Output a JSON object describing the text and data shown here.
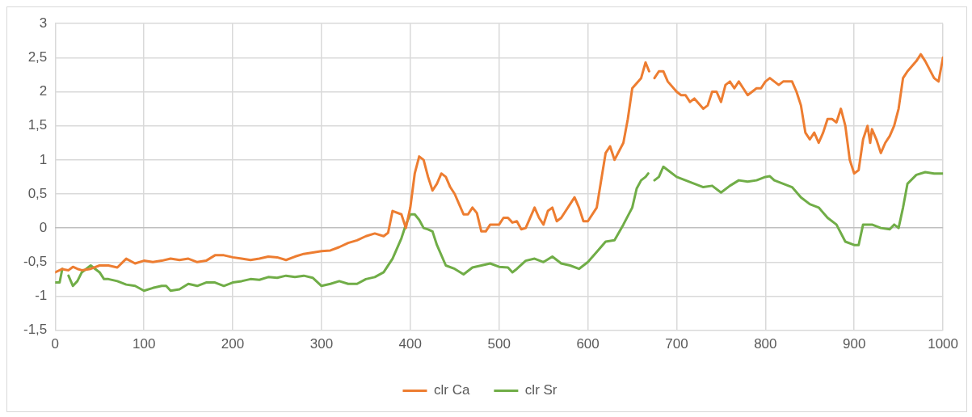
{
  "chart_data": {
    "type": "line",
    "xlim": [
      0,
      1000
    ],
    "xticks": [
      0,
      100,
      200,
      300,
      400,
      500,
      600,
      700,
      800,
      900,
      1000
    ],
    "ylim": [
      -1.5,
      3
    ],
    "yticks": [
      {
        "value": -1.5,
        "label": "-1,5"
      },
      {
        "value": -1,
        "label": "-1"
      },
      {
        "value": -0.5,
        "label": "-0,5"
      },
      {
        "value": 0,
        "label": "0"
      },
      {
        "value": 0.5,
        "label": "0,5"
      },
      {
        "value": 1,
        "label": "1"
      },
      {
        "value": 1.5,
        "label": "1,5"
      },
      {
        "value": 2,
        "label": "2"
      },
      {
        "value": 2.5,
        "label": "2,5"
      },
      {
        "value": 3,
        "label": "3"
      }
    ],
    "grid": true,
    "legend": "bottom",
    "marker": "none",
    "line_style": "solid",
    "series": [
      {
        "name": "clr Ca",
        "color": "#ed7d31",
        "x": [
          0,
          5,
          8,
          10,
          15,
          20,
          25,
          30,
          40,
          50,
          60,
          70,
          80,
          90,
          100,
          110,
          120,
          130,
          140,
          150,
          160,
          170,
          180,
          190,
          200,
          210,
          220,
          230,
          240,
          250,
          260,
          270,
          280,
          290,
          300,
          310,
          320,
          330,
          340,
          350,
          360,
          370,
          375,
          380,
          390,
          395,
          400,
          405,
          410,
          415,
          420,
          425,
          430,
          435,
          440,
          445,
          450,
          460,
          465,
          470,
          475,
          480,
          485,
          490,
          500,
          505,
          510,
          515,
          520,
          525,
          530,
          540,
          545,
          550,
          555,
          560,
          565,
          570,
          580,
          585,
          590,
          595,
          600,
          610,
          615,
          620,
          625,
          630,
          640,
          645,
          650,
          660,
          665,
          669,
          671,
          675,
          680,
          685,
          690,
          700,
          705,
          710,
          715,
          720,
          730,
          735,
          740,
          745,
          750,
          755,
          760,
          765,
          770,
          775,
          780,
          790,
          795,
          800,
          805,
          810,
          815,
          820,
          830,
          835,
          840,
          845,
          850,
          855,
          860,
          865,
          870,
          875,
          880,
          885,
          890,
          895,
          900,
          905,
          910,
          915,
          918,
          920,
          925,
          930,
          935,
          940,
          945,
          950,
          955,
          960,
          970,
          975,
          980,
          990,
          995,
          1000
        ],
        "values": [
          -0.65,
          -0.62,
          -0.6,
          -0.61,
          -0.62,
          -0.57,
          -0.6,
          -0.62,
          -0.6,
          -0.55,
          -0.55,
          -0.58,
          -0.45,
          -0.52,
          -0.48,
          -0.5,
          -0.48,
          -0.45,
          -0.47,
          -0.45,
          -0.5,
          -0.48,
          -0.4,
          -0.4,
          -0.43,
          -0.45,
          -0.47,
          -0.45,
          -0.42,
          -0.43,
          -0.47,
          -0.42,
          -0.38,
          -0.36,
          -0.34,
          -0.33,
          -0.28,
          -0.22,
          -0.18,
          -0.12,
          -0.08,
          -0.12,
          -0.07,
          0.25,
          0.2,
          0,
          0.3,
          0.8,
          1.05,
          1,
          0.75,
          0.55,
          0.65,
          0.8,
          0.75,
          0.6,
          0.5,
          0.2,
          0.2,
          0.3,
          0.22,
          -0.05,
          -0.05,
          0.05,
          0.05,
          0.15,
          0.15,
          0.08,
          0.1,
          -0.02,
          0,
          0.3,
          0.15,
          0.05,
          0.25,
          0.3,
          0.1,
          0.15,
          0.35,
          0.45,
          0.3,
          0.1,
          0.1,
          0.3,
          0.7,
          1.1,
          1.2,
          1,
          1.25,
          1.6,
          2.05,
          2.2,
          2.43,
          2.3,
          null,
          2.2,
          2.3,
          2.3,
          2.15,
          2,
          1.95,
          1.95,
          1.85,
          1.9,
          1.75,
          1.8,
          2,
          2,
          1.85,
          2.1,
          2.15,
          2.05,
          2.15,
          2.05,
          1.95,
          2.05,
          2.05,
          2.15,
          2.2,
          2.15,
          2.1,
          2.15,
          2.15,
          2,
          1.8,
          1.4,
          1.3,
          1.4,
          1.25,
          1.4,
          1.6,
          1.6,
          1.55,
          1.75,
          1.5,
          1,
          0.8,
          0.85,
          1.3,
          1.5,
          1.25,
          1.45,
          1.3,
          1.1,
          1.25,
          1.35,
          1.5,
          1.75,
          2.2,
          2.3,
          2.45,
          2.55,
          2.45,
          2.2,
          2.15,
          2.5
        ]
      },
      {
        "name": "clr Sr",
        "color": "#70ad47",
        "x": [
          0,
          5,
          8,
          10,
          15,
          20,
          25,
          30,
          35,
          40,
          45,
          50,
          55,
          60,
          70,
          80,
          90,
          100,
          110,
          120,
          125,
          130,
          140,
          150,
          160,
          170,
          180,
          190,
          200,
          210,
          220,
          230,
          240,
          250,
          260,
          270,
          280,
          290,
          300,
          310,
          320,
          330,
          340,
          350,
          360,
          370,
          380,
          390,
          395,
          400,
          405,
          410,
          415,
          420,
          425,
          430,
          440,
          450,
          460,
          470,
          480,
          490,
          500,
          510,
          515,
          520,
          530,
          540,
          550,
          560,
          570,
          580,
          590,
          600,
          610,
          620,
          630,
          640,
          650,
          655,
          660,
          665,
          668,
          670,
          675,
          680,
          685,
          690,
          700,
          710,
          720,
          730,
          740,
          750,
          760,
          770,
          780,
          790,
          800,
          805,
          810,
          820,
          830,
          840,
          850,
          860,
          870,
          880,
          890,
          900,
          905,
          910,
          920,
          930,
          940,
          945,
          950,
          955,
          960,
          970,
          980,
          990,
          1000
        ],
        "values": [
          -0.8,
          -0.8,
          -0.6,
          null,
          -0.7,
          -0.85,
          -0.78,
          -0.65,
          -0.6,
          -0.55,
          -0.6,
          -0.65,
          -0.75,
          -0.75,
          -0.78,
          -0.83,
          -0.85,
          -0.92,
          -0.88,
          -0.85,
          -0.85,
          -0.92,
          -0.9,
          -0.82,
          -0.85,
          -0.8,
          -0.8,
          -0.85,
          -0.8,
          -0.78,
          -0.75,
          -0.76,
          -0.72,
          -0.73,
          -0.7,
          -0.72,
          -0.7,
          -0.73,
          -0.85,
          -0.82,
          -0.78,
          -0.82,
          -0.82,
          -0.75,
          -0.72,
          -0.65,
          -0.45,
          -0.15,
          0.05,
          0.2,
          0.2,
          0.12,
          0,
          -0.02,
          -0.05,
          -0.25,
          -0.55,
          -0.6,
          -0.68,
          -0.58,
          -0.55,
          -0.52,
          -0.57,
          -0.58,
          -0.65,
          -0.6,
          -0.48,
          -0.45,
          -0.5,
          -0.42,
          -0.52,
          -0.55,
          -0.6,
          -0.5,
          -0.35,
          -0.2,
          -0.18,
          0.05,
          0.3,
          0.58,
          0.7,
          0.75,
          0.8,
          null,
          0.7,
          0.75,
          0.9,
          0.85,
          0.75,
          0.7,
          0.65,
          0.6,
          0.62,
          0.52,
          0.62,
          0.7,
          0.68,
          0.7,
          0.75,
          0.76,
          0.7,
          0.65,
          0.6,
          0.45,
          0.35,
          0.3,
          0.15,
          0.05,
          -0.2,
          -0.25,
          -0.25,
          0.05,
          0.05,
          0,
          -0.02,
          0.05,
          0,
          0.3,
          0.65,
          0.78,
          0.82,
          0.8,
          0.8
        ]
      }
    ]
  }
}
